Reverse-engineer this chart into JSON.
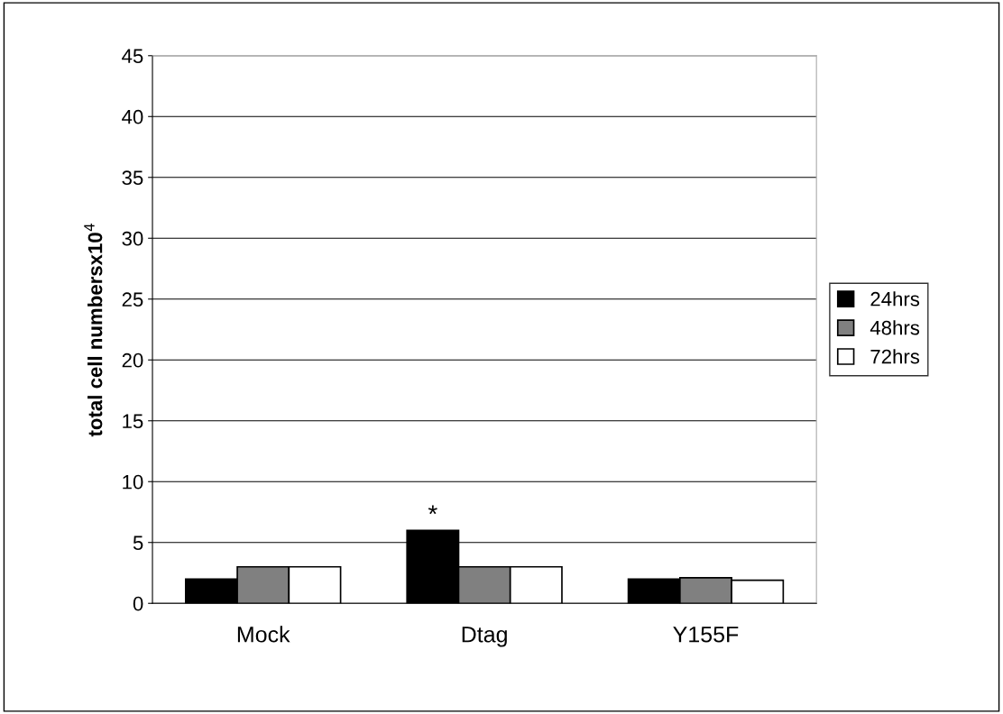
{
  "chart_data": {
    "type": "bar",
    "ylabel": "total cell numbersx10$^{4}$",
    "categories": [
      "Mock",
      "Dtag",
      "Y155F"
    ],
    "series": [
      {
        "name": "24hrs",
        "color": "#000000",
        "values": [
          2,
          6,
          2
        ]
      },
      {
        "name": "48hrs",
        "color": "#808080",
        "values": [
          3,
          3,
          2.1
        ]
      },
      {
        "name": "72hrs",
        "color": "#ffffff",
        "values": [
          3,
          3,
          1.9
        ]
      }
    ],
    "ylim": [
      0,
      45
    ],
    "yticks": [
      0,
      5,
      10,
      15,
      20,
      25,
      30,
      35,
      40,
      45
    ],
    "grid": "y",
    "legend": "right",
    "annotations": [
      "*"
    ]
  }
}
